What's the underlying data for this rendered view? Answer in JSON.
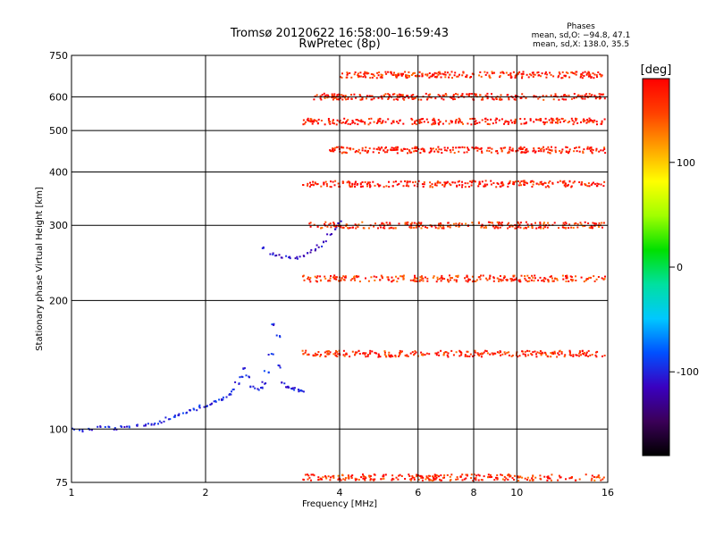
{
  "chart_data": {
    "type": "scatter",
    "title": "Tromsø 20120622 16:58:00–16:59:43",
    "subtitle": "RwPretec (8p)",
    "xlabel": "Frequency [MHz]",
    "ylabel": "Stationary phase Virtual Height [km]",
    "x_scale": "log",
    "y_scale": "log",
    "xlim": [
      1,
      16
    ],
    "ylim": [
      75,
      750
    ],
    "x_ticks": [
      1,
      2,
      4,
      6,
      8,
      10,
      16
    ],
    "y_ticks": [
      75,
      100,
      200,
      300,
      400,
      500,
      600,
      750
    ],
    "grid": true,
    "phase_info": {
      "title": "Phases",
      "line1": "mean, sd,O: −94.8, 47.1",
      "line2": "mean, sd,X: 138.0, 35.5"
    },
    "colorbar": {
      "label": "[deg]",
      "ticks": [
        100,
        0,
        -100
      ],
      "range": [
        -180,
        180
      ],
      "colors_low_to_high": [
        "#000000",
        "#3b0058",
        "#3a00c0",
        "#0050ff",
        "#00c8ff",
        "#00e0a0",
        "#00e000",
        "#a0ff00",
        "#ffff00",
        "#ffa000",
        "#ff4000",
        "#ff0000"
      ]
    },
    "series": [
      {
        "x": [
          1.0,
          1.05,
          1.1,
          1.15,
          1.2,
          1.25,
          1.3,
          1.35,
          1.4,
          1.45,
          1.5,
          1.55,
          1.6,
          1.65,
          1.7,
          1.75,
          1.8,
          1.85,
          1.9,
          1.95,
          2.0,
          2.05,
          2.1,
          2.15,
          2.2,
          2.25,
          2.3,
          2.35,
          2.4,
          2.45,
          2.5,
          2.55,
          2.6,
          2.65,
          2.7,
          2.75,
          2.8,
          2.85,
          2.9,
          2.95,
          3.0,
          3.05,
          3.1,
          3.15,
          3.2,
          3.25,
          3.3
        ],
        "y": [
          100,
          99,
          100,
          101,
          101,
          100,
          101,
          101,
          102,
          102,
          103,
          103,
          104,
          106,
          107,
          108,
          109,
          110,
          111,
          113,
          113,
          114,
          116,
          117,
          118,
          121,
          123,
          128,
          133,
          138,
          133,
          126,
          124,
          125,
          128,
          136,
          150,
          175,
          165,
          140,
          128,
          126,
          125,
          124,
          123,
          123,
          123
        ],
        "phase_deg": [
          -100,
          -100,
          -100,
          -100,
          -100,
          -100,
          -100,
          -100,
          -100,
          -100,
          -100,
          -100,
          -100,
          -100,
          -100,
          -100,
          -100,
          -100,
          -100,
          -100,
          -100,
          -100,
          -100,
          -100,
          -100,
          -100,
          -100,
          -100,
          -100,
          -100,
          -100,
          -100,
          -100,
          -100,
          -100,
          -100,
          -100,
          -100,
          -100,
          -100,
          -100,
          -100,
          -100,
          -100,
          -100,
          -100,
          -100
        ]
      },
      {
        "x": [
          2.7,
          2.8,
          2.9,
          3.0,
          3.1,
          3.2,
          3.3,
          3.4,
          3.5,
          3.6,
          3.7,
          3.8,
          3.9,
          4.0
        ],
        "y": [
          265,
          258,
          255,
          253,
          252,
          252,
          255,
          258,
          262,
          268,
          275,
          285,
          295,
          305
        ],
        "phase_deg": [
          -110,
          -110,
          -110,
          -110,
          -110,
          -110,
          -110,
          -110,
          -110,
          -110,
          -110,
          -110,
          -110,
          -110
        ]
      },
      {
        "x_range": [
          3.3,
          15.8
        ],
        "y": 150,
        "phase_deg": 165
      },
      {
        "x_range": [
          3.3,
          15.8
        ],
        "y": 225,
        "phase_deg": 160
      },
      {
        "x_range": [
          3.4,
          15.8
        ],
        "y": 300,
        "phase_deg": 160
      },
      {
        "x_range": [
          3.3,
          15.8
        ],
        "y": 375,
        "phase_deg": 170
      },
      {
        "x_range": [
          3.8,
          15.8
        ],
        "y": 450,
        "phase_deg": 170
      },
      {
        "x_range": [
          3.3,
          15.8
        ],
        "y": 525,
        "phase_deg": 170
      },
      {
        "x_range": [
          3.5,
          15.8
        ],
        "y": 600,
        "phase_deg": 170
      },
      {
        "x_range": [
          4.0,
          15.8
        ],
        "y": 675,
        "phase_deg": 165
      },
      {
        "x_range": [
          3.3,
          15.8
        ],
        "y": 77,
        "phase_deg": 160
      }
    ]
  }
}
